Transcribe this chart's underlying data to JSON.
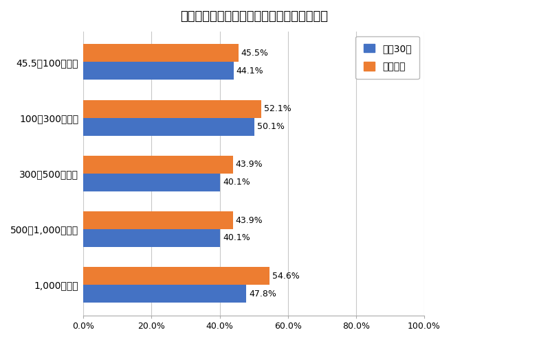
{
  "title": "図　企業規模別の法定雇用率達成企業の割合",
  "categories": [
    "45.5～100人未満",
    "100～300人未満",
    "300～500人未満",
    "500～1,000人未満",
    "1,000人以上"
  ],
  "heisei_values": [
    44.1,
    50.1,
    40.1,
    40.1,
    47.8
  ],
  "reiwa_values": [
    45.5,
    52.1,
    43.9,
    43.9,
    54.6
  ],
  "heisei_color": "#4472C4",
  "reiwa_color": "#ED7D31",
  "legend_heisei": "平成30年",
  "legend_reiwa": "令和元年",
  "xlim": [
    0,
    100
  ],
  "xticks": [
    0,
    20,
    40,
    60,
    80,
    100
  ],
  "xtick_labels": [
    "0.0%",
    "20.0%",
    "40.0%",
    "60.0%",
    "80.0%",
    "100.0%"
  ],
  "background_color": "#ffffff",
  "grid_color": "#c8c8c8",
  "title_fontsize": 13,
  "label_fontsize": 10,
  "tick_fontsize": 9,
  "bar_height": 0.32,
  "annotation_fontsize": 9
}
